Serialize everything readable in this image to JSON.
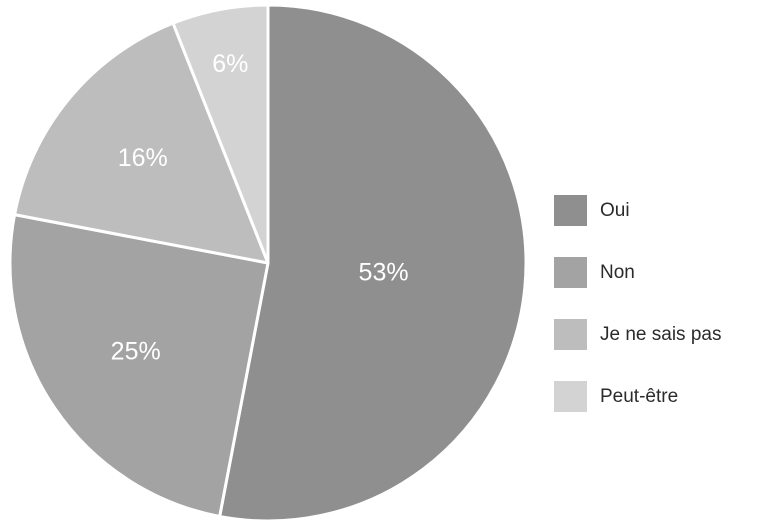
{
  "chart_data": {
    "type": "pie",
    "title": "",
    "slices": [
      {
        "label": "Oui",
        "value": 53,
        "display": "53%",
        "color": "#8f8f8f"
      },
      {
        "label": "Non",
        "value": 25,
        "display": "25%",
        "color": "#a3a3a3"
      },
      {
        "label": "Je ne sais pas",
        "value": 16,
        "display": "16%",
        "color": "#bdbdbd"
      },
      {
        "label": "Peut-être",
        "value": 6,
        "display": "6%",
        "color": "#d3d3d3"
      }
    ],
    "start_angle_deg": 0,
    "direction": "clockwise",
    "legend_position": "right"
  }
}
